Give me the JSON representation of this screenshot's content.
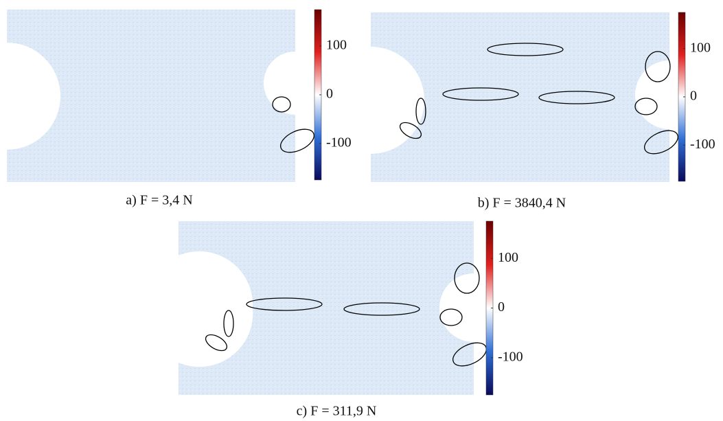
{
  "panels": [
    {
      "caption": "a) F = 3,4 N",
      "colorbar": {
        "lim": [
          -175,
          175
        ],
        "ticks": [
          -100,
          0,
          100
        ]
      }
    },
    {
      "caption": "b) F = 3840,4 N",
      "colorbar": {
        "lim": [
          -175,
          175
        ],
        "ticks": [
          -100,
          0,
          100
        ]
      }
    },
    {
      "caption": "c) F = 311,9 N",
      "colorbar": {
        "lim": [
          -175,
          175
        ],
        "ticks": [
          -100,
          0,
          100
        ]
      }
    }
  ]
}
